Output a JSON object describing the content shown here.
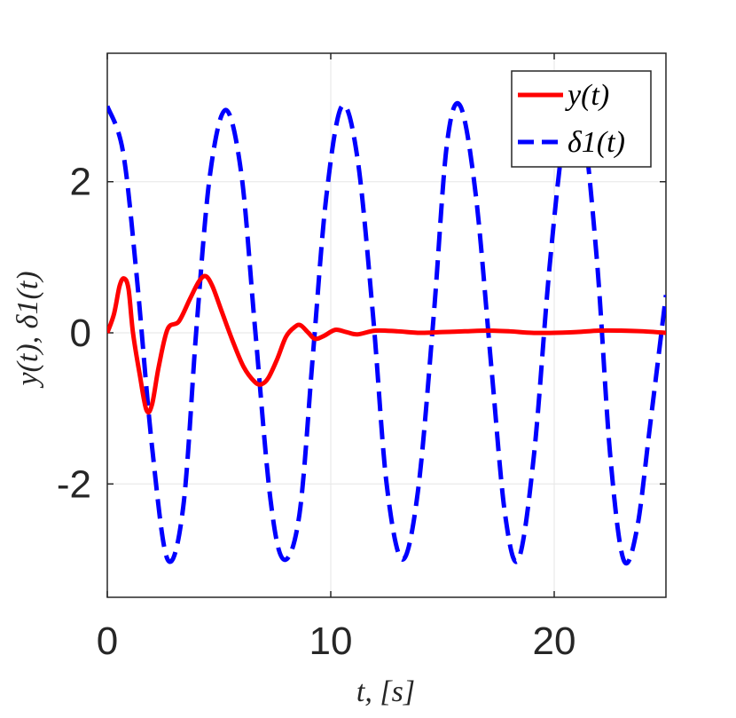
{
  "chart_data": {
    "type": "line",
    "xlabel": "t, [s]",
    "ylabel": "y(t), δ1(t)",
    "xlim": [
      0,
      25
    ],
    "ylim": [
      -3.5,
      3.7
    ],
    "xticks": [
      0,
      10,
      20
    ],
    "xtick_labels": [
      "0",
      "10",
      "20"
    ],
    "yticks": [
      -2,
      0,
      2
    ],
    "ytick_labels": [
      "-2",
      "0",
      "2"
    ],
    "grid": true,
    "legend_position": "top-right",
    "series": [
      {
        "name": "y(t)",
        "color": "#ff0000",
        "style": "solid",
        "x": [
          0,
          0.3,
          0.55,
          0.75,
          0.95,
          1.15,
          1.45,
          1.75,
          2.0,
          2.3,
          2.7,
          3.2,
          3.7,
          4.1,
          4.4,
          4.7,
          5.1,
          5.6,
          6.1,
          6.6,
          6.9,
          7.2,
          7.6,
          8.0,
          8.4,
          8.65,
          9.0,
          9.3,
          9.7,
          10.2,
          10.7,
          11.2,
          12.0,
          13.0,
          14.0,
          15.0,
          16.0,
          17.0,
          18.0,
          19.0,
          20.0,
          21.0,
          22.0,
          23.0,
          24.0,
          25.0
        ],
        "values": [
          0,
          0.25,
          0.62,
          0.72,
          0.58,
          0.0,
          -0.55,
          -1.02,
          -0.95,
          -0.45,
          0.05,
          0.15,
          0.45,
          0.68,
          0.75,
          0.62,
          0.3,
          -0.1,
          -0.45,
          -0.65,
          -0.68,
          -0.6,
          -0.35,
          -0.05,
          0.08,
          0.1,
          0.0,
          -0.08,
          -0.04,
          0.04,
          0.01,
          -0.02,
          0.03,
          0.02,
          0.0,
          0.01,
          0.02,
          0.03,
          0.02,
          0.0,
          0.0,
          0.01,
          0.03,
          0.03,
          0.02,
          0.0
        ]
      },
      {
        "name": "δ1(t)",
        "color": "#0000ff",
        "style": "dashed",
        "x": [
          0,
          0.7,
          1.3,
          2.0,
          2.7,
          3.4,
          4.0,
          4.6,
          5.3,
          6.0,
          6.6,
          7.3,
          7.9,
          8.6,
          9.2,
          9.8,
          10.5,
          11.2,
          11.9,
          12.5,
          13.2,
          13.9,
          14.6,
          15.2,
          15.8,
          16.5,
          17.2,
          17.8,
          18.4,
          19.1,
          19.8,
          20.5,
          21.2,
          21.9,
          22.5,
          23.1,
          23.7,
          24.3,
          25.0
        ],
        "values": [
          3.0,
          2.4,
          0.8,
          -1.5,
          -3.0,
          -2.3,
          0.1,
          2.1,
          2.95,
          2.1,
          0.1,
          -2.2,
          -3.0,
          -2.4,
          -0.3,
          1.8,
          3.0,
          2.3,
          0.2,
          -2.0,
          -3.0,
          -2.1,
          0.2,
          2.5,
          3.0,
          1.8,
          -0.5,
          -2.4,
          -3.0,
          -1.6,
          0.9,
          2.7,
          2.9,
          1.0,
          -1.6,
          -3.0,
          -2.6,
          -1.2,
          0.5
        ]
      }
    ]
  }
}
